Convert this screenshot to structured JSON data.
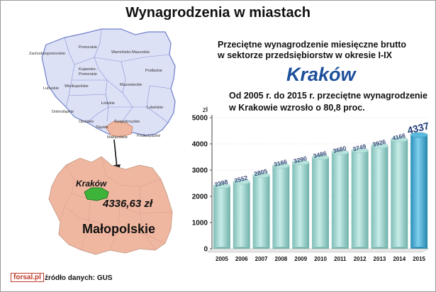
{
  "header": {
    "title": "Wynagrodzenia w miastach",
    "subtitle_line1": "Przeciętne wynagrodzenie miesięczne brutto",
    "subtitle_line2": "w sektorze przedsiębiorstw w okresie I-IX",
    "city": "Kraków",
    "note_line1": "Od 2005 r. do 2015 r. przeciętne wynagrodzenie",
    "note_line2": "w Krakowie wzrosło o 80,8 proc."
  },
  "map": {
    "regions": [
      {
        "label": "Pomorskie"
      },
      {
        "label": "Zachodniopomorskie"
      },
      {
        "label": "Warmińsko-Mazurskie"
      },
      {
        "label": "Kujawsko-Pomorskie"
      },
      {
        "label": "Podlaskie"
      },
      {
        "label": "Lubuskie"
      },
      {
        "label": "Wielkopolskie"
      },
      {
        "label": "Mazowieckie"
      },
      {
        "label": "Łódzkie"
      },
      {
        "label": "Lubelskie"
      },
      {
        "label": "Dolnośląskie"
      },
      {
        "label": "Świętokrzyskie"
      },
      {
        "label": "Opolskie"
      },
      {
        "label": "Śląskie"
      },
      {
        "label": "Małopolskie"
      },
      {
        "label": "Podkarpackie"
      }
    ],
    "zoom_city": "Kraków",
    "zoom_value": "4336,63 zł",
    "zoom_region": "Małopolskie",
    "colors": {
      "country": "#dde1f6",
      "border": "#6e7fc9",
      "region": "#f0b7a0",
      "city": "#3db33a"
    }
  },
  "footer": {
    "logo": "forsal.pl",
    "source": "źródło danych: GUS"
  },
  "chart_data": {
    "type": "bar",
    "ylabel": "zł",
    "ylim": [
      0,
      5000
    ],
    "yticks": [
      0,
      1000,
      2000,
      3000,
      4000,
      5000
    ],
    "categories": [
      "2005",
      "2006",
      "2007",
      "2008",
      "2009",
      "2010",
      "2011",
      "2012",
      "2013",
      "2014",
      "2015"
    ],
    "values": [
      2398,
      2552,
      2805,
      3166,
      3290,
      3486,
      3680,
      3749,
      3926,
      4166,
      4337
    ],
    "labels": [
      "2398",
      "2552",
      "2805",
      "3166",
      "3290",
      "3486",
      "3680",
      "3749",
      "3926",
      "4166",
      "4337"
    ],
    "colors": {
      "bar": "#9ed6cf",
      "bar_highlight": "#3aa2cb"
    }
  }
}
